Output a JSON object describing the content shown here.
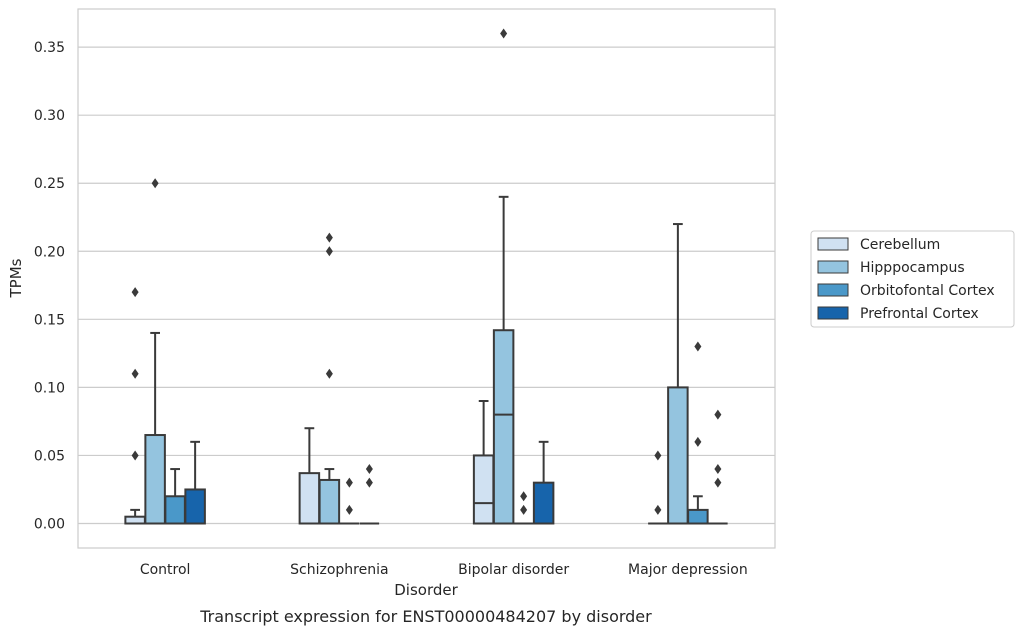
{
  "caption": "Transcript expression for ENST00000484207 by disorder",
  "chart_data": {
    "type": "box",
    "xlabel": "Disorder",
    "ylabel": "TPMs",
    "categories": [
      "Control",
      "Schizophrenia",
      "Bipolar disorder",
      "Major depression"
    ],
    "ylim": [
      -0.018,
      0.378
    ],
    "yticks": [
      0.0,
      0.05,
      0.1,
      0.15,
      0.2,
      0.25,
      0.3,
      0.35
    ],
    "ytick_labels": [
      "0.00",
      "0.05",
      "0.10",
      "0.15",
      "0.20",
      "0.25",
      "0.30",
      "0.35"
    ],
    "grid": "horizontal",
    "legend_position": "right",
    "series": [
      {
        "name": "Cerebellum",
        "color": "#d0e1f2",
        "boxes": [
          {
            "q1": 0.0,
            "median": 0.0,
            "q3": 0.005,
            "whisker_low": 0.0,
            "whisker_high": 0.01,
            "outliers": [
              0.05,
              0.11,
              0.17
            ]
          },
          {
            "q1": 0.0,
            "median": 0.0,
            "q3": 0.037,
            "whisker_low": 0.0,
            "whisker_high": 0.07,
            "outliers": []
          },
          {
            "q1": 0.0,
            "median": 0.015,
            "q3": 0.05,
            "whisker_low": 0.0,
            "whisker_high": 0.09,
            "outliers": []
          },
          {
            "q1": 0.0,
            "median": 0.0,
            "q3": 0.0,
            "whisker_low": 0.0,
            "whisker_high": 0.0,
            "outliers": [
              0.01,
              0.05
            ]
          }
        ]
      },
      {
        "name": "Hipppocampus",
        "color": "#94c4df",
        "boxes": [
          {
            "q1": 0.0,
            "median": 0.0,
            "q3": 0.065,
            "whisker_low": 0.0,
            "whisker_high": 0.14,
            "outliers": [
              0.25
            ]
          },
          {
            "q1": 0.0,
            "median": 0.0,
            "q3": 0.032,
            "whisker_low": 0.0,
            "whisker_high": 0.04,
            "outliers": [
              0.11,
              0.2,
              0.21
            ]
          },
          {
            "q1": 0.0,
            "median": 0.08,
            "q3": 0.142,
            "whisker_low": 0.0,
            "whisker_high": 0.24,
            "outliers": [
              0.36
            ]
          },
          {
            "q1": 0.0,
            "median": 0.0,
            "q3": 0.1,
            "whisker_low": 0.0,
            "whisker_high": 0.22,
            "outliers": []
          }
        ]
      },
      {
        "name": "Orbitofontal Cortex",
        "color": "#4a98c9",
        "boxes": [
          {
            "q1": 0.0,
            "median": 0.0,
            "q3": 0.02,
            "whisker_low": 0.0,
            "whisker_high": 0.04,
            "outliers": []
          },
          {
            "q1": 0.0,
            "median": 0.0,
            "q3": 0.0,
            "whisker_low": 0.0,
            "whisker_high": 0.0,
            "outliers": [
              0.01,
              0.03
            ]
          },
          {
            "q1": 0.0,
            "median": 0.0,
            "q3": 0.0,
            "whisker_low": 0.0,
            "whisker_high": 0.0,
            "outliers": [
              0.01,
              0.02
            ]
          },
          {
            "q1": 0.0,
            "median": 0.0,
            "q3": 0.01,
            "whisker_low": 0.0,
            "whisker_high": 0.02,
            "outliers": [
              0.06,
              0.13
            ]
          }
        ]
      },
      {
        "name": "Prefrontal Cortex",
        "color": "#1764ab",
        "boxes": [
          {
            "q1": 0.0,
            "median": 0.0,
            "q3": 0.025,
            "whisker_low": 0.0,
            "whisker_high": 0.06,
            "outliers": []
          },
          {
            "q1": 0.0,
            "median": 0.0,
            "q3": 0.0,
            "whisker_low": 0.0,
            "whisker_high": 0.0,
            "outliers": [
              0.03,
              0.04
            ]
          },
          {
            "q1": 0.0,
            "median": 0.0,
            "q3": 0.03,
            "whisker_low": 0.0,
            "whisker_high": 0.06,
            "outliers": []
          },
          {
            "q1": 0.0,
            "median": 0.0,
            "q3": 0.0,
            "whisker_low": 0.0,
            "whisker_high": 0.0,
            "outliers": [
              0.03,
              0.04,
              0.08
            ]
          }
        ]
      }
    ]
  }
}
